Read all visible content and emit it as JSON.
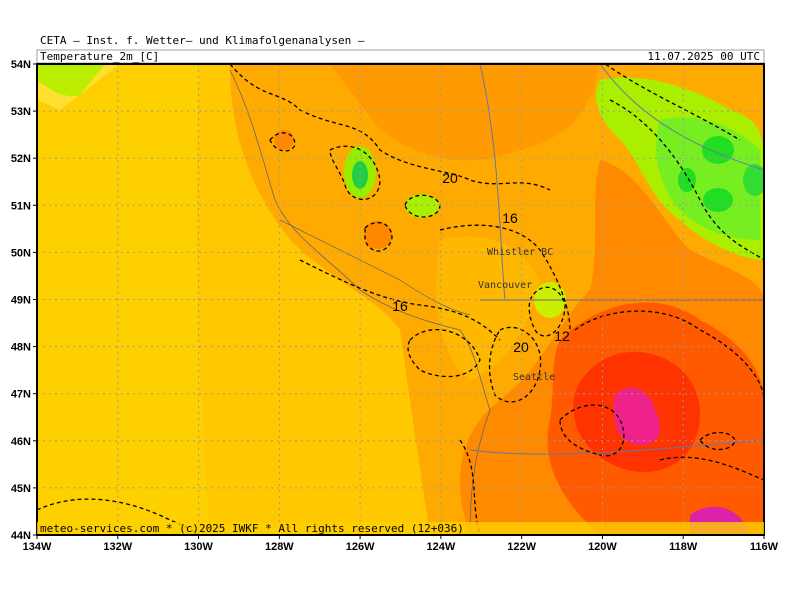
{
  "header": {
    "source": "CETA — Inst. f. Wetter— und Klimafolgenanalysen —",
    "field": "Temperature_2m_[C]",
    "time": "11.07.2025 00 UTC"
  },
  "map": {
    "lat_labels": [
      "54N",
      "53N",
      "52N",
      "51N",
      "50N",
      "49N",
      "48N",
      "47N",
      "46N",
      "45N",
      "44N"
    ],
    "lon_labels": [
      "134W",
      "132W",
      "130W",
      "128W",
      "126W",
      "124W",
      "122W",
      "120W",
      "118W",
      "116W"
    ],
    "contour_labels": [
      "20",
      "16",
      "16",
      "12",
      "20"
    ],
    "places": [
      "Whistler BC",
      "Vancouver",
      "Seattle"
    ]
  },
  "footer": "meteo-services.com * (c)2025 IWKF * All rights reserved (12+036)"
}
